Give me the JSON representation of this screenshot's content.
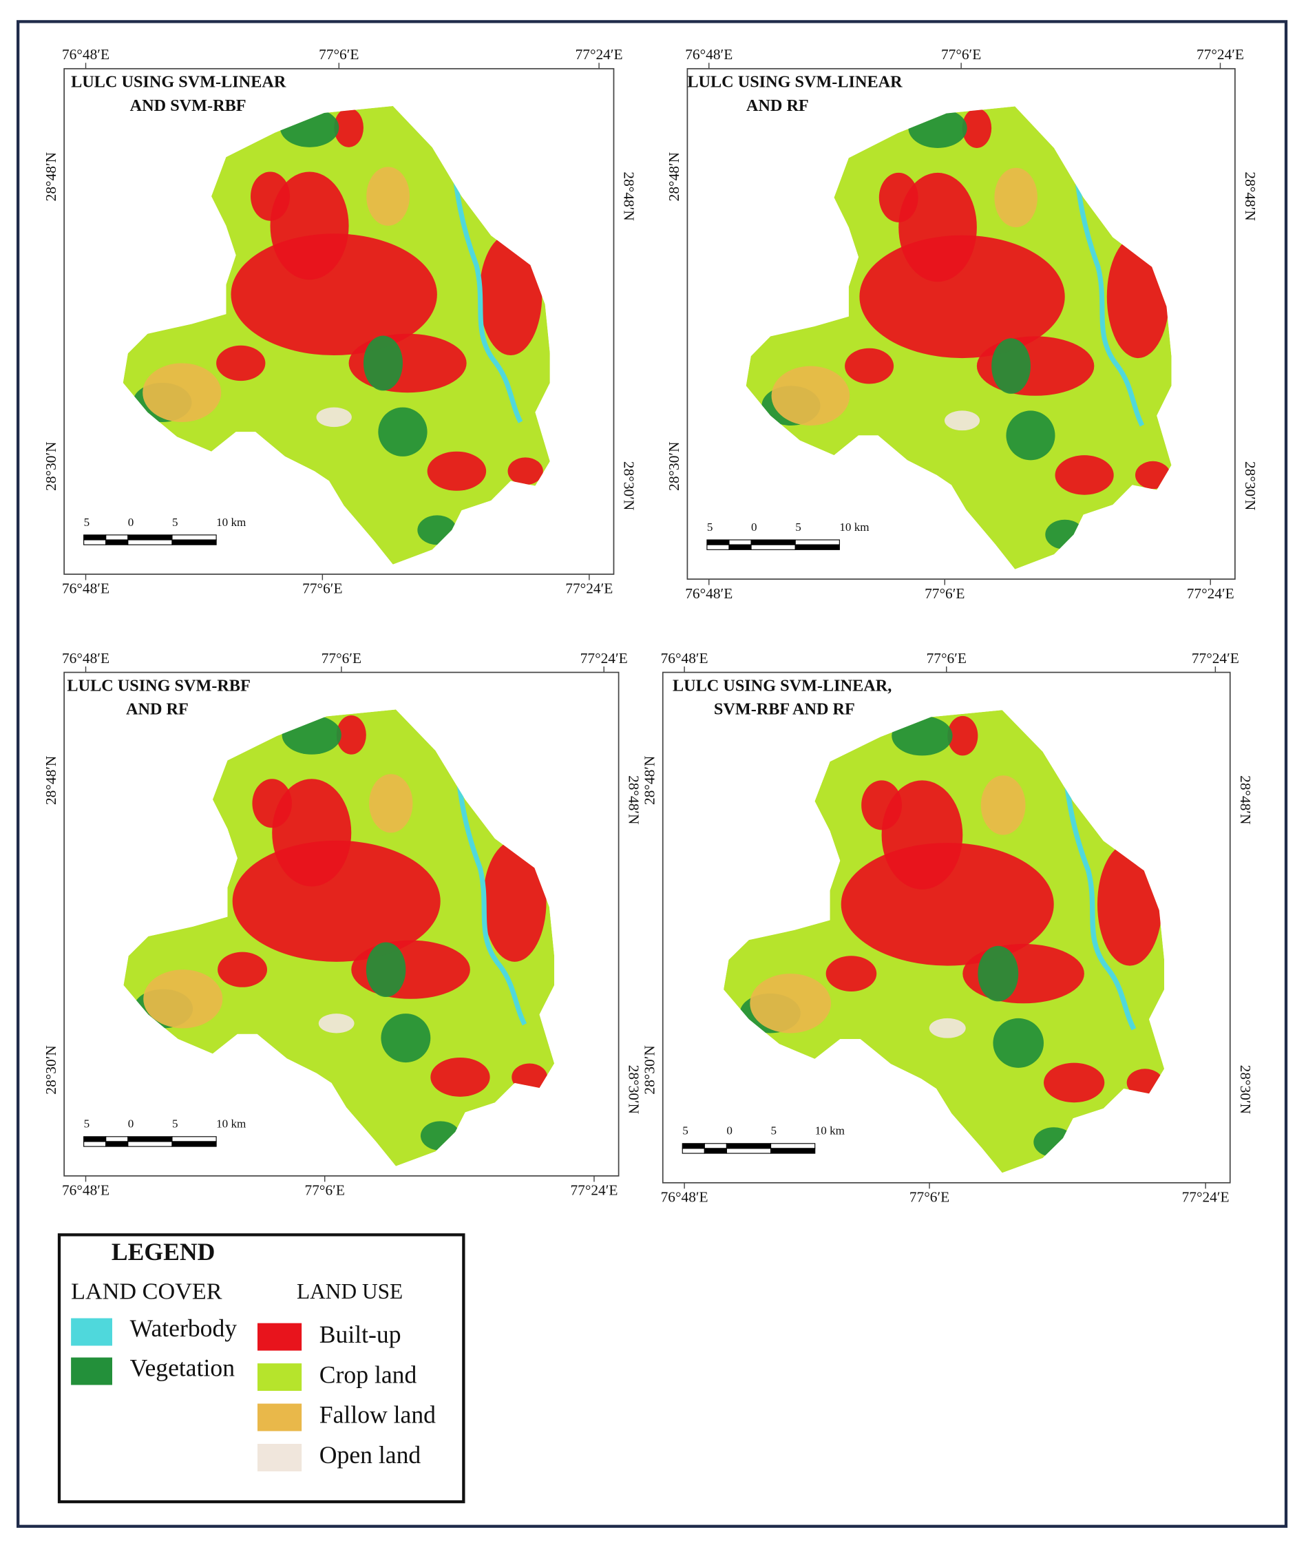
{
  "maps": [
    {
      "title_lines": [
        "LULC USING SVM-LINEAR",
        "AND SVM-RBF"
      ],
      "top_lon_labels": [
        "76°48′E",
        "77°6′E",
        "77°24′E"
      ],
      "bottom_lon_labels": [
        "76°48′E",
        "77°6′E",
        "77°24′E"
      ],
      "left_lat_labels": [
        "28°48′N",
        "28°30′N"
      ],
      "right_lat_labels": [
        "28°48′N",
        "28°30′N"
      ],
      "scale_labels": [
        "5",
        "0",
        "5",
        "10 km"
      ]
    },
    {
      "title_lines": [
        "LULC USING SVM-LINEAR",
        "AND RF"
      ],
      "top_lon_labels": [
        "76°48′E",
        "77°6′E",
        "77°24′E"
      ],
      "bottom_lon_labels": [
        "76°48′E",
        "77°6′E",
        "77°24′E"
      ],
      "left_lat_labels": [
        "28°48′N",
        "28°30′N"
      ],
      "right_lat_labels": [
        "28°48′N",
        "28°30′N"
      ],
      "scale_labels": [
        "5",
        "0",
        "5",
        "10 km"
      ]
    },
    {
      "title_lines": [
        "LULC USING SVM-RBF",
        "AND RF"
      ],
      "top_lon_labels": [
        "76°48′E",
        "77°6′E",
        "77°24′E"
      ],
      "bottom_lon_labels": [
        "76°48′E",
        "77°6′E",
        "77°24′E"
      ],
      "left_lat_labels": [
        "28°48′N",
        "28°30′N"
      ],
      "right_lat_labels": [
        "28°48′N",
        "28°30′N"
      ],
      "scale_labels": [
        "5",
        "0",
        "5",
        "10 km"
      ]
    },
    {
      "title_lines": [
        "LULC USING SVM-LINEAR,",
        "SVM-RBF AND RF"
      ],
      "top_lon_labels": [
        "76°48′E",
        "77°6′E",
        "77°24′E"
      ],
      "bottom_lon_labels": [
        "76°48′E",
        "77°6′E",
        "77°24′E"
      ],
      "left_lat_labels": [
        "28°48′N",
        "28°30′N"
      ],
      "right_lat_labels": [
        "28°48′N",
        "28°30′N"
      ],
      "scale_labels": [
        "5",
        "0",
        "5",
        "10 km"
      ]
    }
  ],
  "legend": {
    "title": "LEGEND",
    "land_cover_heading": "LAND COVER",
    "land_use_heading": "LAND USE",
    "land_cover": [
      {
        "label": "Waterbody",
        "color": "#4fd8dc"
      },
      {
        "label": "Vegetation",
        "color": "#23903a"
      }
    ],
    "land_use": [
      {
        "label": "Built-up",
        "color": "#e8141c"
      },
      {
        "label": "Crop land",
        "color": "#b6e42c"
      },
      {
        "label": "Fallow land",
        "color": "#e9b84a"
      },
      {
        "label": "Open land",
        "color": "#f0e6dc"
      }
    ]
  }
}
